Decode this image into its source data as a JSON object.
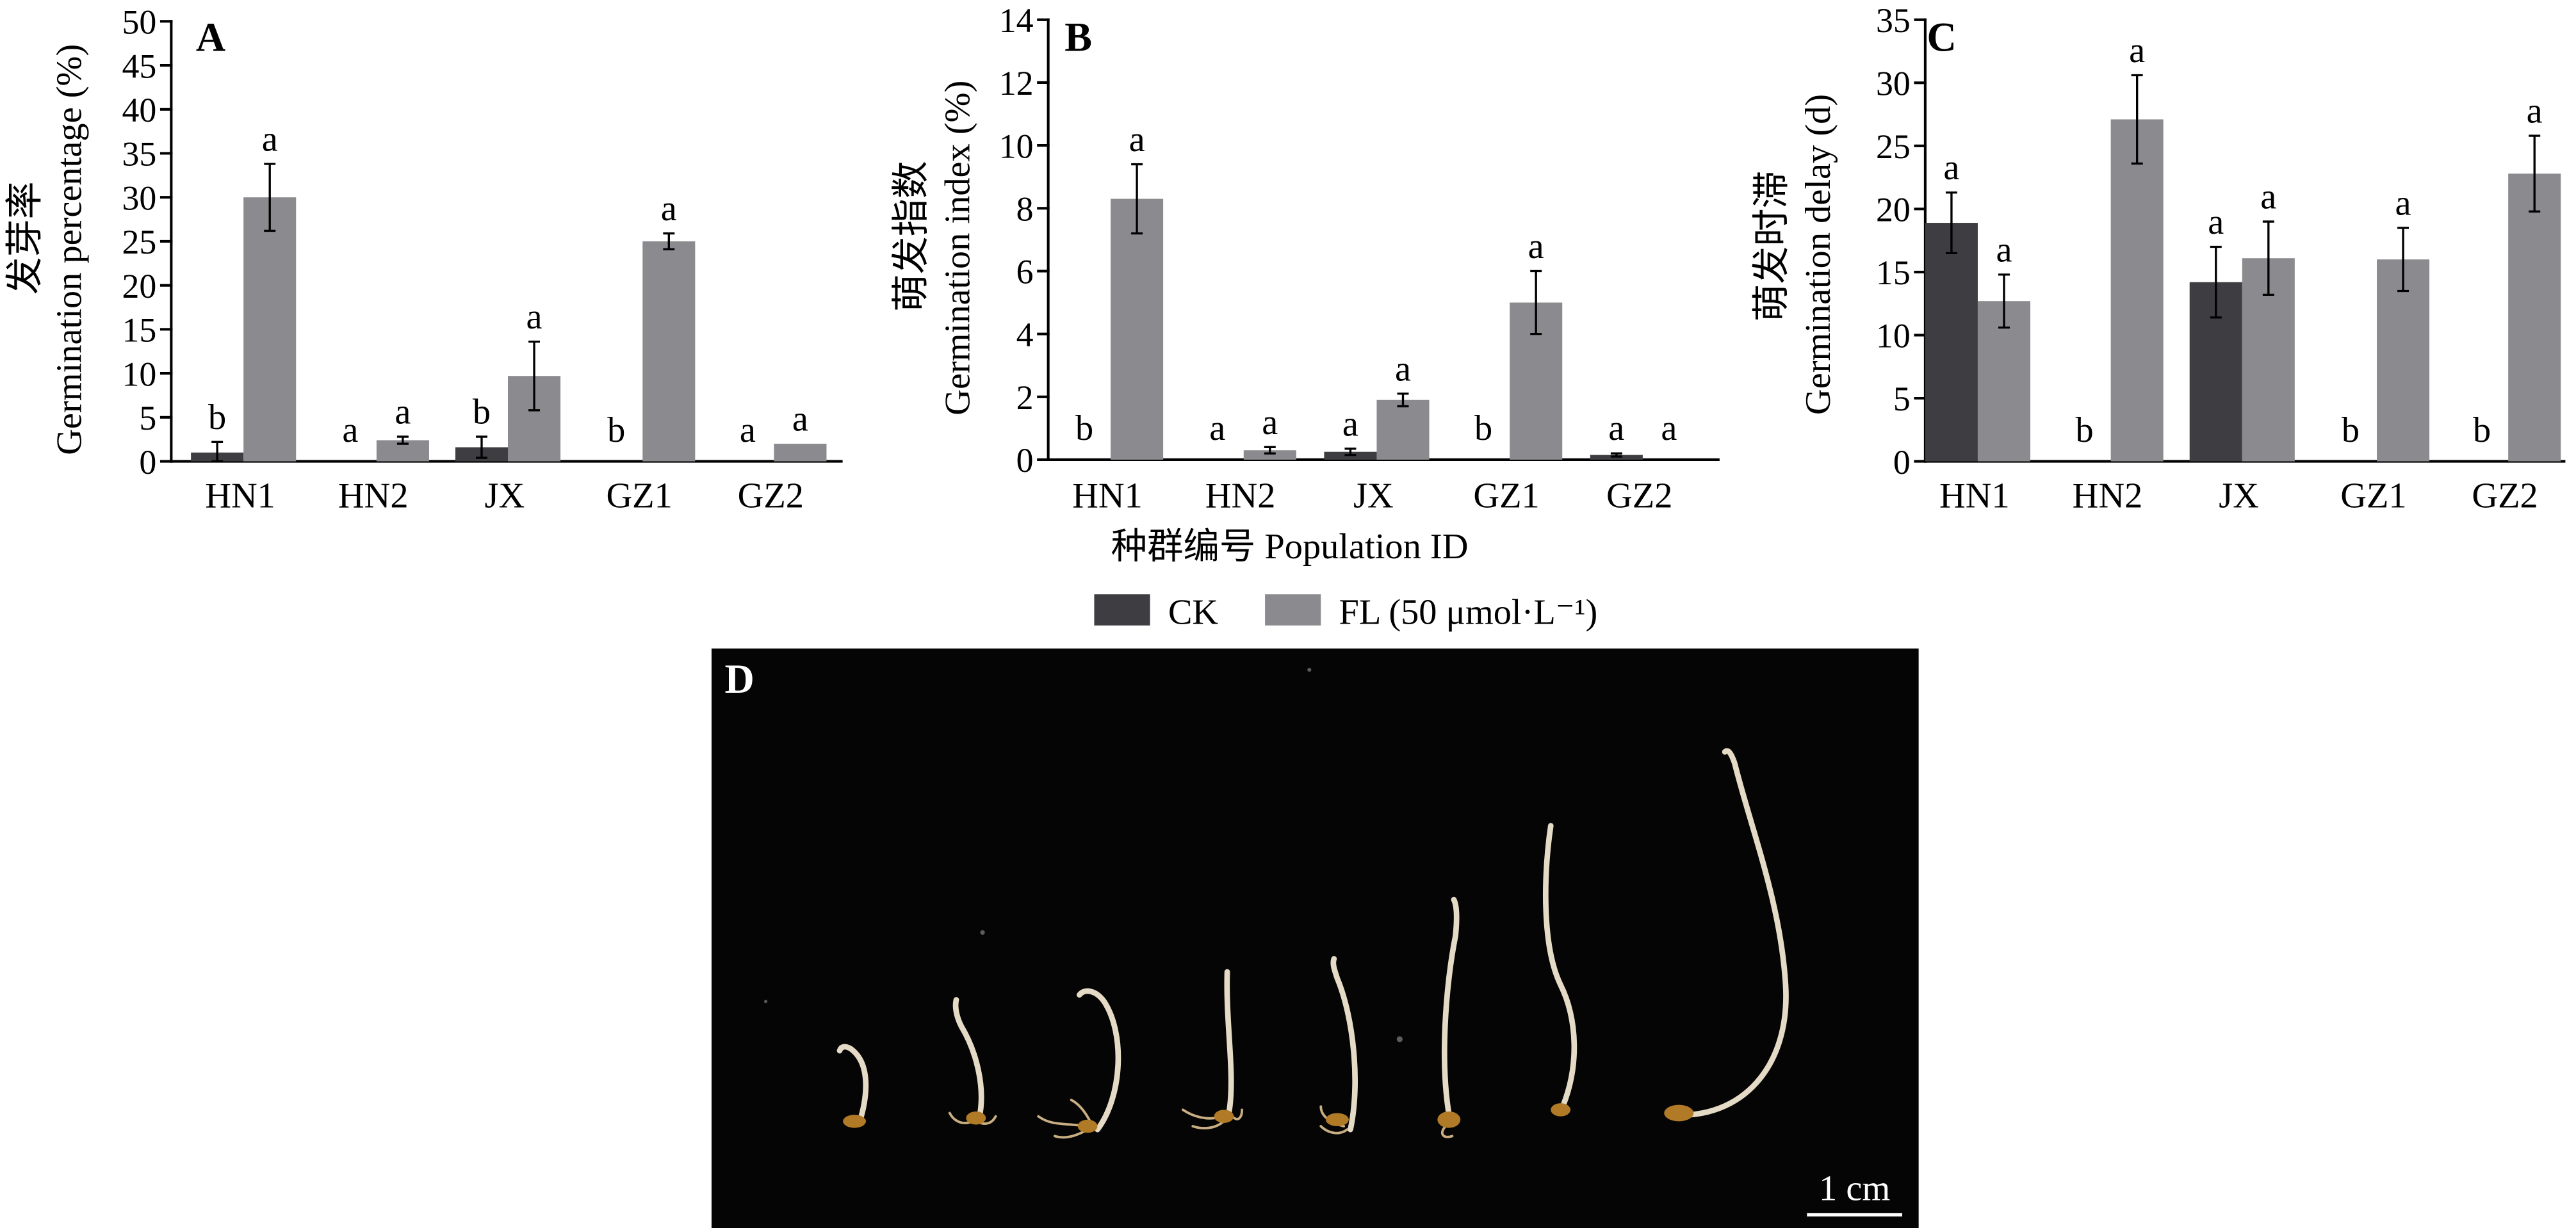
{
  "legend": {
    "position": "bottom",
    "items": [
      {
        "label": "CK",
        "color": "#3e3d42"
      },
      {
        "label": "FL (50 μmol·L⁻¹)",
        "color": "#8b8a8e"
      }
    ]
  },
  "chart_data": [
    {
      "type": "bar",
      "panel_letter": "A",
      "ylabel": [
        "发芽率",
        "Germination percentage (%)"
      ],
      "categories": [
        "HN1",
        "HN2",
        "JX",
        "GZ1",
        "GZ2"
      ],
      "ylim": [
        0,
        50
      ],
      "yticks": [
        0,
        5,
        10,
        15,
        20,
        25,
        30,
        35,
        40,
        45,
        50
      ],
      "grid": false,
      "series": [
        {
          "name": "CK",
          "color": "#3e3d42",
          "values": [
            1.0,
            0,
            1.6,
            0,
            0
          ],
          "errors": [
            1.2,
            0,
            1.2,
            0,
            0
          ],
          "letters": [
            "b",
            "a",
            "b",
            "b",
            "a"
          ]
        },
        {
          "name": "FL (50 μmol·L⁻¹)",
          "color": "#8b8a8e",
          "values": [
            30.0,
            2.4,
            9.7,
            25.0,
            2.0
          ],
          "errors": [
            3.8,
            0.4,
            3.9,
            0.9,
            0
          ],
          "letters": [
            "a",
            "a",
            "a",
            "a",
            "a"
          ]
        }
      ]
    },
    {
      "type": "bar",
      "panel_letter": "B",
      "ylabel": [
        "萌发指数",
        "Germination index (%)"
      ],
      "xlabel": "种群编号 Population ID",
      "categories": [
        "HN1",
        "HN2",
        "JX",
        "GZ1",
        "GZ2"
      ],
      "ylim": [
        0,
        14
      ],
      "yticks": [
        0,
        2,
        4,
        6,
        8,
        10,
        12,
        14
      ],
      "grid": false,
      "series": [
        {
          "name": "CK",
          "color": "#3e3d42",
          "values": [
            0,
            0,
            0.25,
            0,
            0.15
          ],
          "errors": [
            0,
            0,
            0.1,
            0,
            0.05
          ],
          "letters": [
            "b",
            "a",
            "a",
            "b",
            "a"
          ]
        },
        {
          "name": "FL (50 μmol·L⁻¹)",
          "color": "#8b8a8e",
          "values": [
            8.3,
            0.3,
            1.9,
            5.0,
            0
          ],
          "errors": [
            1.1,
            0.1,
            0.2,
            1.0,
            0
          ],
          "letters": [
            "a",
            "a",
            "a",
            "a",
            "a"
          ]
        }
      ]
    },
    {
      "type": "bar",
      "panel_letter": "C",
      "ylabel": [
        "萌发时滞",
        "Germination delay (d)"
      ],
      "categories": [
        "HN1",
        "HN2",
        "JX",
        "GZ1",
        "GZ2"
      ],
      "ylim": [
        0,
        35
      ],
      "yticks": [
        0,
        5,
        10,
        15,
        20,
        25,
        30,
        35
      ],
      "grid": false,
      "series": [
        {
          "name": "CK",
          "color": "#3e3d42",
          "values": [
            18.9,
            0,
            14.2,
            0,
            0
          ],
          "errors": [
            2.4,
            0,
            2.8,
            0,
            0
          ],
          "letters": [
            "a",
            "b",
            "a",
            "b",
            "b"
          ]
        },
        {
          "name": "FL (50 μmol·L⁻¹)",
          "color": "#8b8a8e",
          "values": [
            12.7,
            27.1,
            16.1,
            16.0,
            22.8
          ],
          "errors": [
            2.1,
            3.5,
            2.9,
            2.5,
            3.0
          ],
          "letters": [
            "a",
            "a",
            "a",
            "a",
            "a"
          ]
        }
      ]
    }
  ],
  "photo": {
    "panel_letter": "D",
    "scale_bar_label": "1 cm",
    "background_color": "#050505"
  }
}
